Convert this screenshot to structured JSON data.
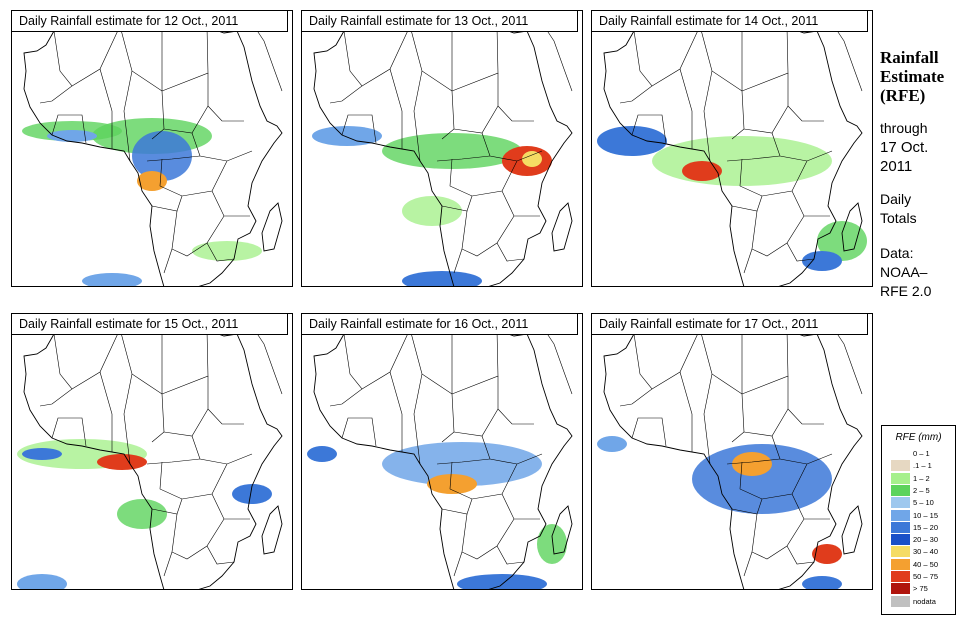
{
  "panels": [
    {
      "title": "Daily Rainfall estimate for  12 Oct., 2011"
    },
    {
      "title": "Daily Rainfall estimate for  13 Oct., 2011"
    },
    {
      "title": "Daily Rainfall estimate for  14 Oct., 2011"
    },
    {
      "title": "Daily Rainfall estimate for  15 Oct., 2011"
    },
    {
      "title": "Daily Rainfall estimate for  16 Oct., 2011"
    },
    {
      "title": "Daily Rainfall estimate for  17 Oct., 2011"
    }
  ],
  "side": {
    "title": "Rainfall\nEstimate\n(RFE)",
    "through": "through",
    "date": "17 Oct.\n2011",
    "daily": "Daily\nTotals",
    "source": "Data:\nNOAA–\nRFE 2.0"
  },
  "legend": {
    "title": "RFE (mm)",
    "items": [
      {
        "label": "0 – 1",
        "color": "#ffffff"
      },
      {
        "label": ".1 – 1",
        "color": "#e6d8c2"
      },
      {
        "label": "1 – 2",
        "color": "#a6f08c"
      },
      {
        "label": "2 – 5",
        "color": "#5cd35c"
      },
      {
        "label": "5 – 10",
        "color": "#9ec8ee"
      },
      {
        "label": "10 – 15",
        "color": "#70a6e8"
      },
      {
        "label": "15 – 20",
        "color": "#3c78d8"
      },
      {
        "label": "20 – 30",
        "color": "#1a50c8"
      },
      {
        "label": "30 – 40",
        "color": "#f5dc64"
      },
      {
        "label": "40 – 50",
        "color": "#f4a030"
      },
      {
        "label": "50 – 75",
        "color": "#e03c1c"
      },
      {
        "label": "> 75",
        "color": "#b0140c"
      },
      {
        "label": "nodata",
        "color": "#c0c0c0"
      }
    ]
  }
}
